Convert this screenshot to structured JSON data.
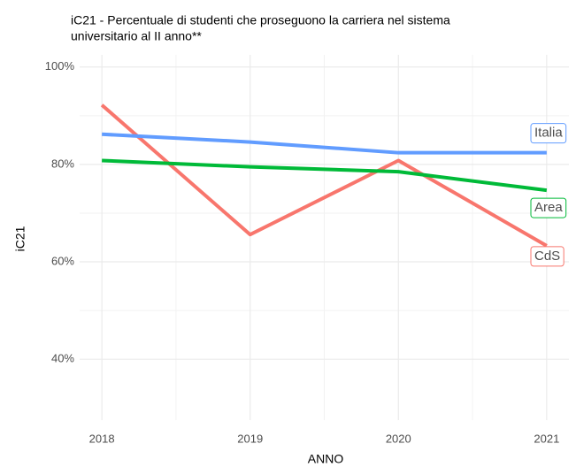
{
  "chart_data": {
    "type": "line",
    "title": [
      "iC21 - Percentuale di studenti che proseguono la carriera nel sistema",
      "universitario al II anno**"
    ],
    "x_label": "ANNO",
    "y_label": "iC21",
    "x": [
      2018,
      2019,
      2020,
      2021
    ],
    "xlim": [
      2017.85,
      2021.15
    ],
    "xticks": [
      2018,
      2019,
      2020,
      2021
    ],
    "ylim": [
      27.5,
      102.5
    ],
    "yticks": [
      {
        "value": 40,
        "label": "40%"
      },
      {
        "value": 60,
        "label": "60%"
      },
      {
        "value": 80,
        "label": "80%"
      },
      {
        "value": 100,
        "label": "100%"
      }
    ],
    "grid": true,
    "series": [
      {
        "name": "CdS",
        "color": "#F8766D",
        "values": [
          92.2,
          65.6,
          80.8,
          63.3
        ]
      },
      {
        "name": "Area",
        "color": "#00BA38",
        "values": [
          80.8,
          79.5,
          78.5,
          74.7
        ]
      },
      {
        "name": "Italia",
        "color": "#619CFF",
        "values": [
          86.2,
          84.6,
          82.4,
          82.4
        ]
      }
    ]
  }
}
